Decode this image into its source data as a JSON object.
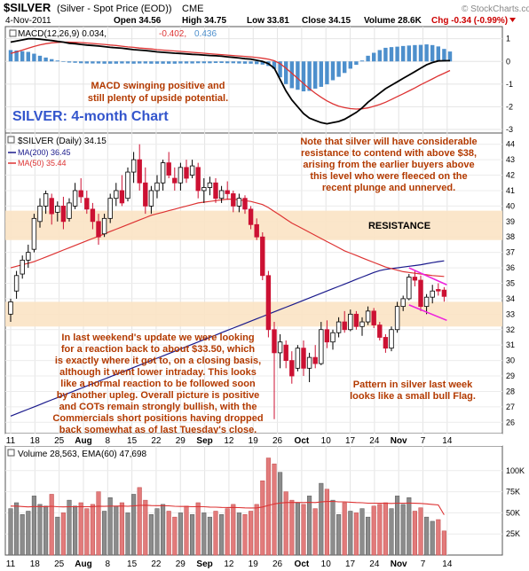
{
  "header": {
    "symbol": "$SILVER",
    "description": "(Silver - Spot Price (EOD))",
    "exchange": "CME",
    "date": "4-Nov-2011",
    "open": "Open 34.56",
    "high": "High 34.75",
    "low": "Low 33.81",
    "close": "Close 34.15",
    "volume": "Volume 28.6K",
    "chg": "Chg -0.34 (-0.99%)",
    "copyright": "© StockCharts.com"
  },
  "colors": {
    "up_candle": "#ffffff",
    "down_candle": "#cc1133",
    "ma200": "#1a1a8c",
    "ma50": "#dd3333",
    "macd_line": "#000000",
    "signal_line": "#dd3333",
    "histogram": "#4d8fcc",
    "zone": "#fbe3c4",
    "annotation": "#b33a00",
    "title": "#3355cc",
    "flag": "#ee22dd"
  },
  "chart_data": [
    {
      "type": "line",
      "panel": "macd",
      "legend": "MACD(12,26,9) 0.034, -0.402, 0.436",
      "legend_parts": [
        "MACD(12,26,9)",
        "0.034,",
        "-0.402,",
        "0.436"
      ],
      "ylim": [
        -3,
        1.3
      ],
      "yticks": [
        "1",
        "0",
        "-1",
        "-2",
        "-3"
      ],
      "series": [
        {
          "name": "MACD",
          "x_start": 0,
          "values": [
            0.85,
            0.9,
            0.95,
            1.0,
            1.0,
            0.98,
            0.95,
            0.92,
            0.88,
            0.85,
            0.8,
            0.78,
            0.75,
            0.72,
            0.7,
            0.68,
            0.65,
            0.62,
            0.6,
            0.58,
            0.55,
            0.52,
            0.5,
            0.48,
            0.45,
            0.42,
            0.4,
            0.38,
            0.36,
            0.35,
            0.33,
            0.31,
            0.3,
            0.28,
            0.26,
            0.25,
            0.23,
            0.2,
            0.18,
            0.15,
            0.12,
            0.1,
            0.05,
            0.0,
            -0.1,
            -0.3,
            -0.8,
            -1.3,
            -1.7,
            -2.0,
            -2.3,
            -2.5,
            -2.6,
            -2.7,
            -2.75,
            -2.7,
            -2.65,
            -2.55,
            -2.4,
            -2.25,
            -2.05,
            -1.8,
            -1.6,
            -1.4,
            -1.2,
            -1.05,
            -0.9,
            -0.75,
            -0.6,
            -0.45,
            -0.3,
            -0.15,
            -0.05,
            0.02,
            0.03,
            0.034
          ]
        },
        {
          "name": "Signal",
          "x_start": 0,
          "values": [
            0.35,
            0.42,
            0.5,
            0.58,
            0.66,
            0.73,
            0.78,
            0.82,
            0.84,
            0.85,
            0.85,
            0.84,
            0.83,
            0.81,
            0.79,
            0.77,
            0.75,
            0.72,
            0.7,
            0.67,
            0.64,
            0.62,
            0.59,
            0.57,
            0.55,
            0.52,
            0.5,
            0.48,
            0.46,
            0.44,
            0.42,
            0.4,
            0.38,
            0.36,
            0.34,
            0.32,
            0.3,
            0.28,
            0.26,
            0.24,
            0.22,
            0.2,
            0.17,
            0.14,
            0.1,
            0.03,
            -0.1,
            -0.3,
            -0.52,
            -0.75,
            -0.98,
            -1.2,
            -1.4,
            -1.58,
            -1.74,
            -1.87,
            -1.97,
            -2.04,
            -2.08,
            -2.1,
            -2.09,
            -2.05,
            -1.98,
            -1.9,
            -1.8,
            -1.68,
            -1.55,
            -1.43,
            -1.3,
            -1.17,
            -1.03,
            -0.9,
            -0.77,
            -0.64,
            -0.52,
            -0.402
          ]
        },
        {
          "name": "Histogram",
          "x_start": 0,
          "values": [
            0.5,
            0.48,
            0.45,
            0.42,
            0.34,
            0.25,
            0.17,
            0.1,
            0.04,
            0.0,
            -0.05,
            -0.06,
            -0.08,
            -0.09,
            -0.09,
            -0.09,
            -0.1,
            -0.1,
            -0.1,
            -0.09,
            -0.09,
            -0.1,
            -0.09,
            -0.09,
            -0.1,
            -0.1,
            -0.1,
            -0.1,
            -0.1,
            -0.09,
            -0.09,
            -0.09,
            -0.08,
            -0.08,
            -0.08,
            -0.07,
            -0.07,
            -0.08,
            -0.08,
            -0.09,
            -0.1,
            -0.1,
            -0.12,
            -0.14,
            -0.2,
            -0.33,
            -0.7,
            -1.0,
            -1.18,
            -1.25,
            -1.32,
            -1.3,
            -1.2,
            -1.12,
            -1.01,
            -0.83,
            -0.68,
            -0.51,
            -0.32,
            -0.15,
            0.04,
            0.25,
            0.38,
            0.5,
            0.6,
            0.63,
            0.65,
            0.68,
            0.7,
            0.72,
            0.73,
            0.75,
            0.72,
            0.66,
            0.55,
            0.436
          ]
        }
      ]
    },
    {
      "type": "candlestick",
      "panel": "price",
      "legend": "$SILVER (Daily) 34.15",
      "legend_ma200": "MA(200) 36.45",
      "legend_ma50": "MA(50) 35.44",
      "ylim": [
        25.5,
        44.5
      ],
      "yticks": [
        26,
        27,
        28,
        29,
        30,
        31,
        32,
        33,
        34,
        35,
        36,
        37,
        38,
        39,
        40,
        41,
        42,
        43,
        44
      ],
      "x_labels": [
        "11",
        "18",
        "25",
        "Aug",
        "8",
        "15",
        "22",
        "29",
        "Sep",
        "12",
        "19",
        "26",
        "Oct",
        "10",
        "17",
        "24",
        "Nov",
        "7",
        "14"
      ],
      "candles": [
        [
          33.0,
          34.0,
          32.5,
          33.8
        ],
        [
          34.5,
          35.8,
          34.0,
          35.5
        ],
        [
          35.6,
          36.8,
          35.3,
          36.5
        ],
        [
          36.5,
          37.5,
          36.0,
          37.0
        ],
        [
          37.2,
          39.5,
          37.0,
          39.2
        ],
        [
          39.0,
          40.5,
          38.6,
          40.0
        ],
        [
          40.0,
          41.0,
          39.5,
          40.8
        ],
        [
          40.5,
          40.8,
          38.8,
          39.5
        ],
        [
          39.6,
          40.3,
          39.0,
          40.0
        ],
        [
          40.0,
          40.6,
          38.5,
          39.0
        ],
        [
          39.2,
          40.5,
          39.0,
          40.2
        ],
        [
          40.0,
          41.5,
          39.8,
          41.0
        ],
        [
          41.0,
          41.8,
          40.2,
          40.6
        ],
        [
          40.5,
          41.0,
          39.5,
          39.8
        ],
        [
          39.8,
          40.2,
          38.5,
          39.0
        ],
        [
          39.0,
          39.5,
          37.5,
          38.0
        ],
        [
          38.2,
          39.5,
          38.0,
          39.2
        ],
        [
          39.2,
          40.8,
          38.9,
          40.5
        ],
        [
          40.5,
          41.5,
          40.0,
          41.0
        ],
        [
          41.0,
          42.0,
          40.0,
          40.2
        ],
        [
          40.5,
          42.5,
          40.3,
          42.2
        ],
        [
          42.2,
          43.5,
          41.5,
          43.0
        ],
        [
          43.0,
          44.0,
          41.0,
          41.5
        ],
        [
          41.5,
          42.5,
          39.5,
          40.0
        ],
        [
          40.0,
          41.3,
          39.5,
          41.0
        ],
        [
          41.0,
          42.0,
          40.5,
          41.5
        ],
        [
          41.5,
          43.0,
          41.0,
          42.8
        ],
        [
          42.8,
          43.5,
          41.8,
          42.0
        ],
        [
          41.8,
          42.5,
          41.0,
          41.5
        ],
        [
          41.5,
          42.8,
          41.0,
          42.5
        ],
        [
          42.5,
          43.0,
          41.5,
          41.8
        ],
        [
          42.0,
          43.0,
          41.8,
          42.6
        ],
        [
          42.5,
          42.8,
          40.5,
          41.0
        ],
        [
          41.0,
          41.8,
          40.2,
          41.2
        ],
        [
          41.2,
          41.9,
          40.7,
          41.5
        ],
        [
          41.5,
          41.8,
          40.2,
          40.5
        ],
        [
          40.5,
          41.3,
          40.2,
          41.0
        ],
        [
          41.0,
          41.6,
          40.4,
          40.8
        ],
        [
          40.8,
          41.0,
          39.6,
          40.0
        ],
        [
          40.0,
          40.8,
          39.6,
          40.5
        ],
        [
          40.5,
          40.7,
          39.5,
          39.8
        ],
        [
          39.8,
          40.0,
          38.5,
          38.8
        ],
        [
          38.8,
          39.2,
          37.8,
          38.0
        ],
        [
          38.0,
          38.3,
          35.2,
          35.5
        ],
        [
          35.5,
          35.8,
          31.5,
          32.0
        ],
        [
          32.0,
          32.5,
          26.2,
          30.5
        ],
        [
          30.5,
          31.7,
          29.5,
          31.2
        ],
        [
          31.0,
          31.3,
          29.5,
          30.0
        ],
        [
          30.0,
          30.6,
          28.5,
          29.0
        ],
        [
          29.5,
          31.0,
          29.3,
          30.8
        ],
        [
          30.8,
          31.3,
          29.0,
          29.5
        ],
        [
          29.5,
          30.5,
          28.6,
          30.2
        ],
        [
          30.2,
          31.0,
          29.5,
          29.8
        ],
        [
          29.8,
          32.5,
          29.7,
          32.0
        ],
        [
          32.0,
          32.6,
          30.8,
          31.2
        ],
        [
          31.2,
          32.0,
          30.7,
          31.8
        ],
        [
          31.8,
          32.8,
          31.5,
          32.5
        ],
        [
          32.5,
          33.2,
          31.8,
          32.0
        ],
        [
          32.0,
          33.3,
          31.9,
          33.0
        ],
        [
          33.0,
          33.2,
          32.0,
          32.2
        ],
        [
          32.2,
          32.8,
          31.6,
          32.5
        ],
        [
          32.5,
          33.5,
          32.3,
          33.2
        ],
        [
          33.2,
          33.4,
          32.1,
          32.3
        ],
        [
          32.3,
          32.5,
          31.3,
          31.5
        ],
        [
          31.5,
          31.7,
          30.5,
          30.8
        ],
        [
          30.8,
          32.2,
          30.6,
          32.0
        ],
        [
          32.0,
          33.8,
          31.8,
          33.5
        ],
        [
          33.5,
          34.2,
          33.2,
          34.0
        ],
        [
          34.0,
          35.6,
          33.9,
          35.4
        ],
        [
          35.4,
          35.8,
          34.8,
          35.2
        ],
        [
          35.2,
          35.5,
          33.2,
          33.5
        ],
        [
          33.5,
          34.3,
          33.0,
          34.1
        ],
        [
          34.1,
          34.9,
          33.7,
          34.5
        ],
        [
          34.6,
          35.0,
          34.2,
          34.5
        ],
        [
          34.56,
          34.75,
          33.81,
          34.15
        ]
      ],
      "ma200_values": [
        26.4,
        26.55,
        26.7,
        26.85,
        27.0,
        27.15,
        27.3,
        27.45,
        27.6,
        27.75,
        27.9,
        28.05,
        28.2,
        28.35,
        28.5,
        28.65,
        28.8,
        28.95,
        29.1,
        29.25,
        29.4,
        29.55,
        29.7,
        29.85,
        30.0,
        30.15,
        30.3,
        30.45,
        30.6,
        30.75,
        30.9,
        31.05,
        31.2,
        31.35,
        31.5,
        31.65,
        31.8,
        31.95,
        32.1,
        32.25,
        32.4,
        32.55,
        32.7,
        32.85,
        33.0,
        33.15,
        33.3,
        33.45,
        33.6,
        33.75,
        33.9,
        34.05,
        34.2,
        34.35,
        34.5,
        34.65,
        34.8,
        34.95,
        35.1,
        35.25,
        35.4,
        35.55,
        35.7,
        35.82,
        35.9,
        35.95,
        36.0,
        36.05,
        36.1,
        36.15,
        36.2,
        36.27,
        36.34,
        36.4,
        36.45
      ],
      "ma50_values": [
        36.0,
        36.1,
        36.2,
        36.3,
        36.4,
        36.55,
        36.7,
        36.85,
        37.0,
        37.15,
        37.3,
        37.45,
        37.6,
        37.75,
        37.9,
        38.05,
        38.2,
        38.35,
        38.5,
        38.65,
        38.8,
        38.95,
        39.1,
        39.25,
        39.4,
        39.5,
        39.6,
        39.7,
        39.8,
        39.9,
        40.0,
        40.1,
        40.2,
        40.25,
        40.3,
        40.35,
        40.4,
        40.45,
        40.45,
        40.4,
        40.35,
        40.3,
        40.2,
        40.1,
        39.9,
        39.65,
        39.4,
        39.15,
        38.9,
        38.7,
        38.5,
        38.3,
        38.1,
        37.9,
        37.7,
        37.5,
        37.3,
        37.1,
        36.95,
        36.8,
        36.65,
        36.5,
        36.35,
        36.2,
        36.05,
        35.95,
        35.85,
        35.75,
        35.7,
        35.65,
        35.6,
        35.55,
        35.5,
        35.47,
        35.44
      ],
      "zones": [
        {
          "label": "RESISTANCE",
          "from": 37.8,
          "to": 39.7
        },
        {
          "label": "",
          "from": 32.2,
          "to": 33.8
        }
      ],
      "flag_lines": [
        {
          "x": [
            68,
            74
          ],
          "y": [
            36.0,
            34.9
          ]
        },
        {
          "x": [
            68,
            74
          ],
          "y": [
            33.6,
            32.6
          ]
        }
      ],
      "annotations": {
        "title": "SILVER: 4-month Chart",
        "resistance_note": [
          "Note that silver will have considerable",
          "resistance to contend with above $38,",
          "arising from the earlier buyers above",
          "this level who were fleeced on the",
          "recent plunge and unnerved."
        ],
        "weekend_note": [
          "In last weekend's update we were looking",
          "for a reaction back to about $33.50, which",
          "is exactly where it got to, on a closing basis,",
          "although it went lower intraday. This looks",
          "like a normal reaction to be followed soon",
          "by another upleg. Overall picture is positive",
          "and COTs remain strongly bullish, with the",
          "Commercials short positions having dropped",
          "back somewhat as of last Tuesday's close."
        ],
        "flag_note": [
          "Pattern in silver last week",
          "looks like a small bull Flag."
        ],
        "macd_note": [
          "MACD swinging positive and",
          "still plenty of upside potential."
        ]
      }
    },
    {
      "type": "bar",
      "panel": "volume",
      "legend": "Volume 28,563, EMA(60) 47,698",
      "ylim": [
        0,
        125000
      ],
      "yticks": [
        "100K",
        "75K",
        "50K",
        "25K"
      ],
      "values": [
        55000,
        62000,
        48000,
        52000,
        70000,
        60000,
        58000,
        72000,
        45000,
        50000,
        65000,
        58000,
        62000,
        55000,
        60000,
        75000,
        52000,
        68000,
        58000,
        62000,
        50000,
        72000,
        80000,
        65000,
        48000,
        55000,
        60000,
        52000,
        45000,
        50000,
        58000,
        48000,
        62000,
        50000,
        45000,
        52000,
        48000,
        55000,
        60000,
        50000,
        48000,
        52000,
        60000,
        88000,
        115000,
        108000,
        98000,
        75000,
        65000,
        62000,
        60000,
        70000,
        55000,
        85000,
        78000,
        65000,
        48000,
        62000,
        52000,
        50000,
        55000,
        45000,
        58000,
        60000,
        62000,
        55000,
        70000,
        60000,
        68000,
        52000,
        56000,
        45000,
        40000,
        42000,
        28563
      ],
      "ema_values": [
        58000,
        58000,
        57500,
        57000,
        57500,
        57500,
        57400,
        57800,
        57300,
        57000,
        57300,
        57300,
        57400,
        57300,
        57400,
        57900,
        57700,
        58000,
        58000,
        58100,
        57800,
        58200,
        58800,
        59000,
        58600,
        58500,
        58500,
        58300,
        57800,
        57600,
        57600,
        57300,
        57400,
        57200,
        56800,
        56700,
        56400,
        56300,
        56400,
        56200,
        55900,
        55800,
        55900,
        56900,
        58800,
        60500,
        61700,
        62200,
        62300,
        62300,
        62200,
        62400,
        62200,
        62900,
        63400,
        63500,
        63000,
        63000,
        62600,
        62200,
        62000,
        61500,
        61400,
        61300,
        61300,
        61100,
        61400,
        61400,
        61600,
        61300,
        61100,
        60600,
        60000,
        59400,
        47698
      ],
      "x_labels": [
        "11",
        "18",
        "25",
        "Aug",
        "8",
        "15",
        "22",
        "29",
        "Sep",
        "12",
        "19",
        "26",
        "Oct",
        "10",
        "17",
        "24",
        "Nov",
        "7",
        "14"
      ]
    }
  ]
}
